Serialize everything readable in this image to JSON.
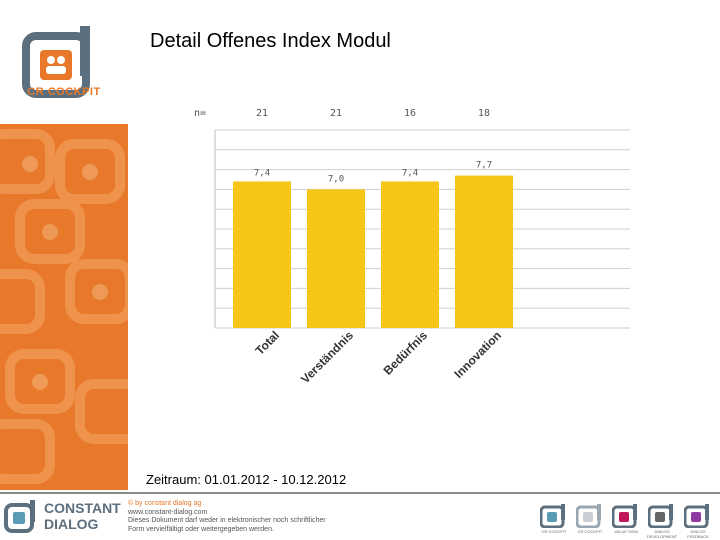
{
  "header": {
    "title": "Detail Offenes Index Modul",
    "logo_text": "CR COCKPIT"
  },
  "chart_data": {
    "type": "bar",
    "categories": [
      "Total",
      "Verständnis",
      "Bedürfnis",
      "Innovation"
    ],
    "values": [
      7.4,
      7.0,
      7.4,
      7.7
    ],
    "value_labels": [
      "7,4",
      "7,0",
      "7,4",
      "7,7"
    ],
    "n_label": "n=",
    "n_values": [
      "21",
      "21",
      "16",
      "18"
    ],
    "ylim": [
      0,
      10
    ],
    "grid": true,
    "legend": "none",
    "bar_color": "#f5c518"
  },
  "period": {
    "label": "Zeitraum: 01.01.2012 - 10.12.2012"
  },
  "footer": {
    "company_line1": "CONSTANT",
    "company_line2": "DIALOG",
    "legal_lines": [
      "© by constant dialog ag",
      "www.constant-dialog.com",
      "Dieses Dokument darf weder in elektronischer noch schriftlicher",
      "Form vervielfältigt oder weitergegeben werden."
    ],
    "brand_labels": [
      "CR COCKPIT",
      "CR COCKPIT",
      "VALUE SIGN",
      "DIALOG DEVELOPMENT",
      "DIALOG FEEDBACK"
    ],
    "brand_colors": [
      "#5a9bb5",
      "#9aa7b0",
      "#c2185b",
      "#666666",
      "#8e3aa0"
    ]
  }
}
